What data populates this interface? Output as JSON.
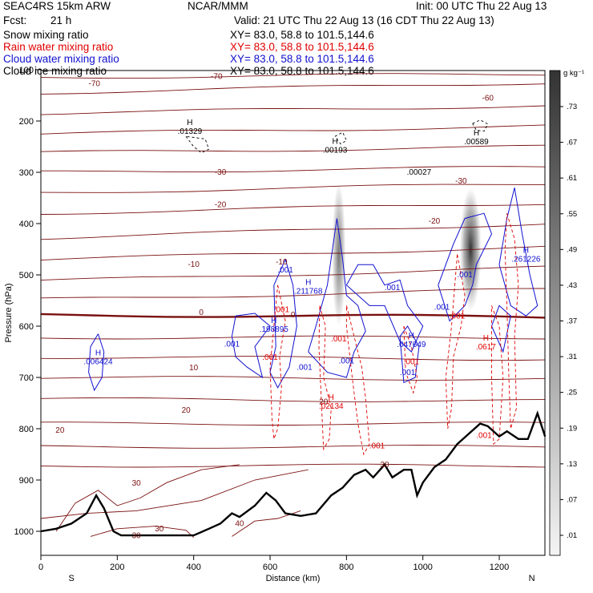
{
  "header": {
    "model": "SEAC4RS 15km ARW",
    "org": "NCAR/MMM",
    "init": "Init: 00 UTC Thu 22 Aug 13",
    "fcst_label": "Fcst:",
    "fcst_value": "21 h",
    "valid": "Valid: 21 UTC Thu 22 Aug 13 (16 CDT Thu 22 Aug 13)"
  },
  "legend": [
    {
      "name": "Snow mixing ratio",
      "xy": "XY=  83.0, 58.8 to 101.5,144.6",
      "color": "#000000"
    },
    {
      "name": "Rain water mixing ratio",
      "xy": "XY=  83.0, 58.8 to 101.5,144.6",
      "color": "#e00000"
    },
    {
      "name": "Cloud water mixing ratio",
      "xy": "XY=  83.0, 58.8 to 101.5,144.6",
      "color": "#1010d0"
    },
    {
      "name": "Cloud ice mixing ratio",
      "xy": "XY=  83.0, 58.8 to 101.5,144.6",
      "color": "#000000"
    }
  ],
  "chart_data": {
    "type": "line",
    "xlabel": "Distance (km)",
    "ylabel": "Pressure (hPa)",
    "xlim": [
      0,
      1320
    ],
    "ylim": [
      1050,
      100
    ],
    "x_ticks": [
      "0",
      "200",
      "400",
      "600",
      "800",
      "1000",
      "1200"
    ],
    "y_ticks": [
      "100",
      "200",
      "300",
      "400",
      "500",
      "600",
      "700",
      "800",
      "900",
      "1000"
    ],
    "x_end_labels": {
      "left": "S",
      "right": "N"
    },
    "colorbar": {
      "unit": "g kg⁻¹",
      "ticks": [
        ".73",
        ".67",
        ".61",
        ".55",
        ".49",
        ".43",
        ".37",
        ".31",
        ".25",
        ".19",
        ".13",
        ".07",
        ".01"
      ]
    },
    "temperature_contours": {
      "color": "#7a1010",
      "labels": [
        {
          "text": "-70",
          "x": 140,
          "p": 132
        },
        {
          "text": "-70",
          "x": 460,
          "p": 118
        },
        {
          "text": "-60",
          "x": 1170,
          "p": 160
        },
        {
          "text": "-30",
          "x": 470,
          "p": 305
        },
        {
          "text": "-30",
          "x": 1100,
          "p": 322
        },
        {
          "text": "-20",
          "x": 470,
          "p": 368
        },
        {
          "text": "-20",
          "x": 1030,
          "p": 400
        },
        {
          "text": "-10",
          "x": 400,
          "p": 484
        },
        {
          "text": "-10",
          "x": 630,
          "p": 480
        },
        {
          "text": "0",
          "x": 420,
          "p": 578
        },
        {
          "text": "0",
          "x": 660,
          "p": 583
        },
        {
          "text": "10",
          "x": 400,
          "p": 686
        },
        {
          "text": "20",
          "x": 380,
          "p": 769
        },
        {
          "text": "20",
          "x": 50,
          "p": 808
        },
        {
          "text": "20",
          "x": 740,
          "p": 752
        },
        {
          "text": "30",
          "x": 250,
          "p": 911
        },
        {
          "text": "30",
          "x": 900,
          "p": 875
        },
        {
          "text": "30",
          "x": 310,
          "p": 1000
        },
        {
          "text": "30",
          "x": 250,
          "p": 1013
        },
        {
          "text": "40",
          "x": 520,
          "p": 990
        }
      ]
    },
    "cloud_water_labels": [
      {
        "text": ".006424",
        "x": 150,
        "p": 674,
        "hi": true
      },
      {
        "text": ".198895",
        "x": 610,
        "p": 611,
        "hi": true
      },
      {
        "text": ".211768",
        "x": 700,
        "p": 537,
        "hi": true
      },
      {
        "text": ".047649",
        "x": 970,
        "p": 641,
        "hi": true
      },
      {
        "text": ".261226",
        "x": 1270,
        "p": 474,
        "hi": true
      },
      {
        "text": ".001",
        "x": 500,
        "p": 640,
        "hi": false
      },
      {
        "text": ".001",
        "x": 640,
        "p": 495,
        "hi": false
      },
      {
        "text": ".001",
        "x": 690,
        "p": 685,
        "hi": false
      },
      {
        "text": ".001",
        "x": 800,
        "p": 673,
        "hi": false
      },
      {
        "text": ".001",
        "x": 960,
        "p": 695,
        "hi": false
      },
      {
        "text": ".001",
        "x": 920,
        "p": 530,
        "hi": false
      },
      {
        "text": ".001",
        "x": 1050,
        "p": 568,
        "hi": false
      },
      {
        "text": ".001",
        "x": 1110,
        "p": 505,
        "hi": false
      }
    ],
    "rain_water_labels": [
      {
        "text": ".02134",
        "x": 760,
        "p": 761,
        "hi": true
      },
      {
        "text": ".0617",
        "x": 1165,
        "p": 645,
        "hi": true
      },
      {
        "text": ".001",
        "x": 630,
        "p": 573,
        "hi": false
      },
      {
        "text": ".001",
        "x": 600,
        "p": 666,
        "hi": false
      },
      {
        "text": ".001",
        "x": 780,
        "p": 630,
        "hi": false
      },
      {
        "text": ".001",
        "x": 880,
        "p": 838,
        "hi": false
      },
      {
        "text": ".001",
        "x": 970,
        "p": 674,
        "hi": false
      },
      {
        "text": ".001",
        "x": 1090,
        "p": 585,
        "hi": false
      },
      {
        "text": ".001",
        "x": 1160,
        "p": 818,
        "hi": false
      }
    ],
    "snow_ice_labels": [
      {
        "text": ".01329",
        "x": 390,
        "p": 225,
        "hi": true
      },
      {
        "text": ".00193",
        "x": 770,
        "p": 262,
        "hi": true
      },
      {
        "text": ".00027",
        "x": 990,
        "p": 305,
        "hi": false
      },
      {
        "text": ".00589",
        "x": 1140,
        "p": 245,
        "hi": true
      }
    ],
    "shading_columns": [
      {
        "x": 780,
        "p_top": 320,
        "p_bottom": 600,
        "intensity": 0.25
      },
      {
        "x": 1125,
        "p_top": 330,
        "p_bottom": 570,
        "intensity": 0.75
      }
    ]
  }
}
